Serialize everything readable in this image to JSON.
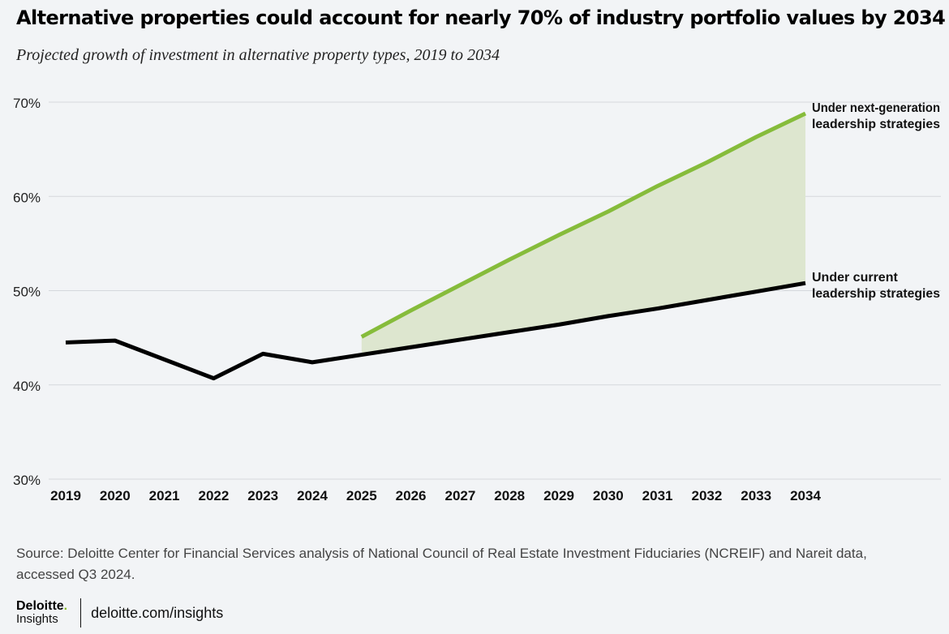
{
  "header": {
    "title": "Alternative properties could account for nearly 70% of industry portfolio values by 2034",
    "subtitle": "Projected growth of investment in alternative property types, 2019 to 2034"
  },
  "chart_data": {
    "type": "line",
    "x": [
      "2019",
      "2020",
      "2021",
      "2022",
      "2023",
      "2024",
      "2025",
      "2026",
      "2027",
      "2028",
      "2029",
      "2030",
      "2031",
      "2032",
      "2033",
      "2034"
    ],
    "ylim": [
      30,
      70
    ],
    "yticks": [
      "30%",
      "40%",
      "50%",
      "60%",
      "70%"
    ],
    "ytick_values": [
      30,
      40,
      50,
      60,
      70
    ],
    "grid": true,
    "series": [
      {
        "name": "Under current leadership strategies",
        "label_lines": [
          "Under current",
          "leadership strategies"
        ],
        "color": "#000000",
        "values": [
          44.5,
          44.7,
          42.7,
          40.7,
          43.3,
          42.4,
          43.2,
          44.0,
          44.8,
          45.6,
          46.4,
          47.3,
          48.1,
          49.0,
          49.9,
          50.8
        ]
      },
      {
        "name": "Under next-generation leadership strategies",
        "label_lines": [
          "Under next-generation",
          "leadership strategies"
        ],
        "color": "#86bc3b",
        "x_start": "2025",
        "values": [
          null,
          null,
          null,
          null,
          null,
          null,
          45.1,
          47.9,
          50.6,
          53.3,
          55.9,
          58.4,
          61.1,
          63.6,
          66.3,
          68.8
        ]
      }
    ],
    "fill_color": "#dde6cf"
  },
  "source": "Source: Deloitte Center for Financial Services analysis of National Council of Real Estate Investment Fiduciaries (NCREIF) and Nareit data, accessed Q3 2024.",
  "footer": {
    "brand_name": "Deloitte",
    "brand_dot": ".",
    "brand_sub": "Insights",
    "url": "deloitte.com/insights"
  }
}
